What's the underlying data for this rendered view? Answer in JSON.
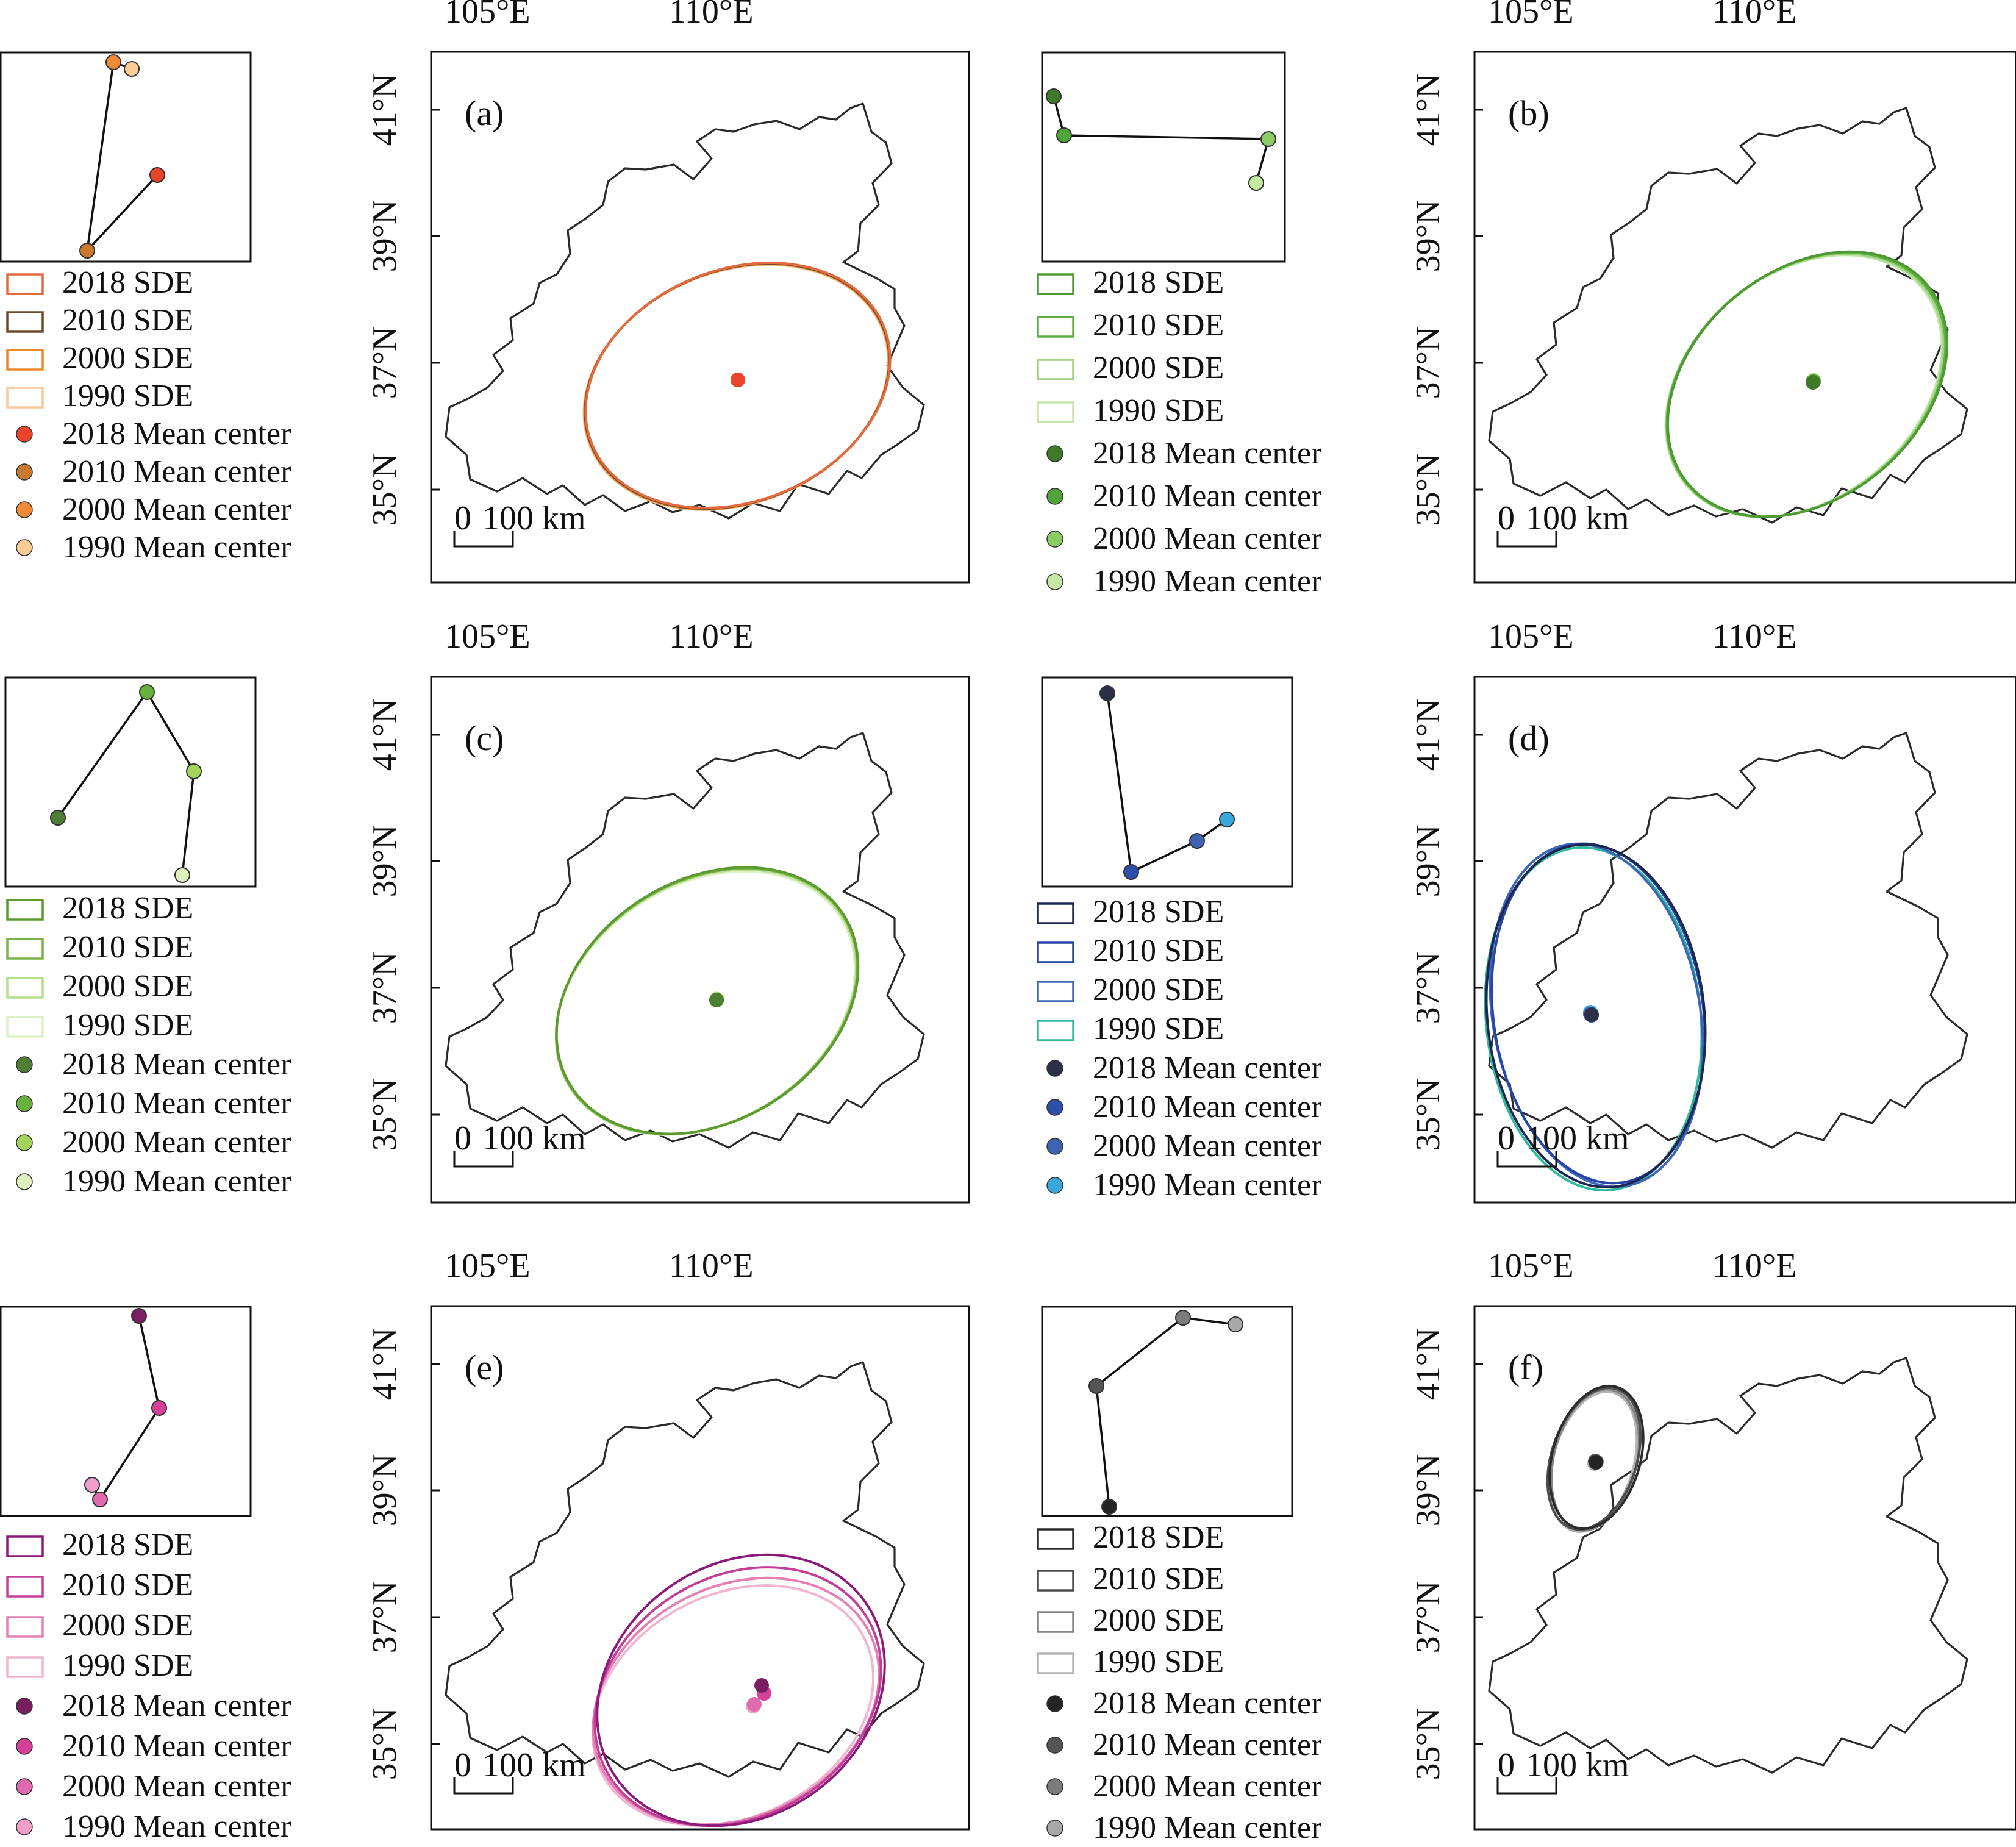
{
  "figure": {
    "lon_ticks": [
      "105°E",
      "110°E"
    ],
    "lat_ticks": [
      "41°N",
      "39°N",
      "37°N",
      "35°N"
    ],
    "scale_bar": {
      "zero": "0",
      "label": "100 km"
    }
  },
  "panels": [
    {
      "id": "a",
      "label": "(a)",
      "sde_colors": [
        "#e36a3f",
        "#6b4a2f",
        "#e8892a",
        "#f6c89a"
      ],
      "center_colors": [
        "#e8452a",
        "#c87a2e",
        "#f18a37",
        "#fbcd96"
      ],
      "legend": {
        "sde": [
          "2018 SDE",
          "2010 SDE",
          "2000 SDE",
          "1990 SDE"
        ],
        "centers": [
          "2018 Mean center",
          "2010 Mean center",
          "2000 Mean center",
          "1990 Mean center"
        ]
      }
    },
    {
      "id": "b",
      "label": "(b)",
      "sde_colors": [
        "#4e9a32",
        "#5fb043",
        "#9ed27d",
        "#c2e5a8"
      ],
      "center_colors": [
        "#3f7a2a",
        "#4fa53a",
        "#8ccc62",
        "#c5e8a3"
      ],
      "legend": {
        "sde": [
          "2018 SDE",
          "2010 SDE",
          "2000 SDE",
          "1990 SDE"
        ],
        "centers": [
          "2018 Mean center",
          "2010 Mean center",
          "2000 Mean center",
          "1990 Mean center"
        ]
      }
    },
    {
      "id": "c",
      "label": "(c)",
      "sde_colors": [
        "#5c9a2f",
        "#79b246",
        "#b7de8b",
        "#def0c6"
      ],
      "center_colors": [
        "#4d7e33",
        "#68b13e",
        "#a4d35c",
        "#dff0bf"
      ],
      "legend": {
        "sde": [
          "2018 SDE",
          "2010 SDE",
          "2000 SDE",
          "1990 SDE"
        ],
        "centers": [
          "2018 Mean center",
          "2010 Mean center",
          "2000 Mean center",
          "1990 Mean center"
        ]
      }
    },
    {
      "id": "d",
      "label": "(d)",
      "sde_colors": [
        "#1f2750",
        "#2545a8",
        "#3d66b7",
        "#2dbb9c"
      ],
      "center_colors": [
        "#2b2f48",
        "#2f4eaa",
        "#3e63b3",
        "#3aa8dc"
      ],
      "legend": {
        "sde": [
          "2018 SDE",
          "2010 SDE",
          "2000 SDE",
          "1990 SDE"
        ],
        "centers": [
          "2018 Mean center",
          "2010 Mean center",
          "2000 Mean center",
          "1990 Mean center"
        ]
      }
    },
    {
      "id": "e",
      "label": "(e)",
      "sde_colors": [
        "#8b1a7a",
        "#c23e97",
        "#e47eb5",
        "#f1b4d1"
      ],
      "center_colors": [
        "#7a1e62",
        "#d4409a",
        "#df6aad",
        "#ef9ec8"
      ],
      "legend": {
        "sde": [
          "2018  SDE",
          "2010  SDE",
          "2000  SDE",
          "1990  SDE"
        ],
        "centers": [
          "2018 Mean center",
          "2010 Mean center",
          "2000 Mean center",
          "1990 Mean center"
        ]
      }
    },
    {
      "id": "f",
      "label": "(f)",
      "sde_colors": [
        "#2b2b2b",
        "#4d4d4d",
        "#848484",
        "#b3b3b3"
      ],
      "center_colors": [
        "#242424",
        "#555555",
        "#7c7c7c",
        "#a8a8a8"
      ],
      "legend": {
        "sde": [
          "2018 SDE",
          "2010 SDE",
          "2000 SDE",
          "1990 SDE"
        ],
        "centers": [
          "2018 Mean center",
          "2010 Mean center",
          "2000 Mean center",
          "1990 Mean center"
        ]
      }
    }
  ]
}
